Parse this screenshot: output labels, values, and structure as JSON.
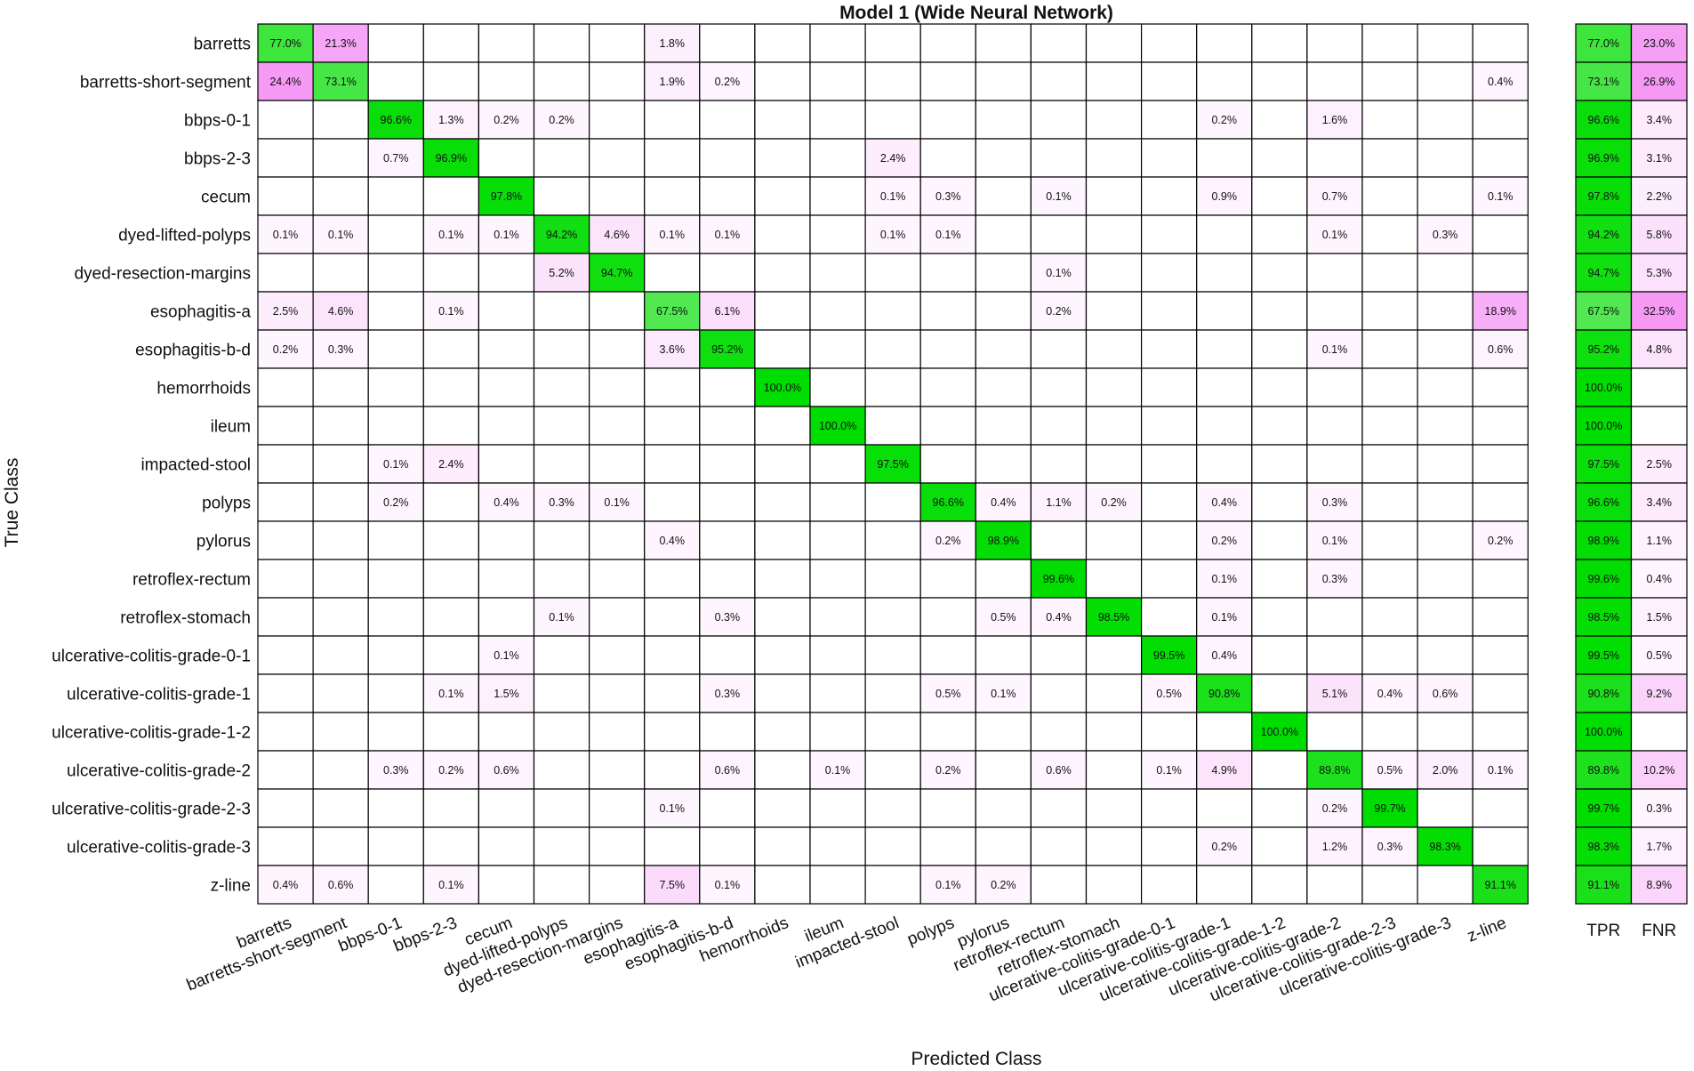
{
  "chart_data": {
    "type": "heatmap",
    "title": "Model 1 (Wide Neural Network)",
    "xlabel": "Predicted Class",
    "ylabel": "True Class",
    "classes": [
      "barretts",
      "barretts-short-segment",
      "bbps-0-1",
      "bbps-2-3",
      "cecum",
      "dyed-lifted-polyps",
      "dyed-resection-margins",
      "esophagitis-a",
      "esophagitis-b-d",
      "hemorrhoids",
      "ileum",
      "impacted-stool",
      "polyps",
      "pylorus",
      "retroflex-rectum",
      "retroflex-stomach",
      "ulcerative-colitis-grade-0-1",
      "ulcerative-colitis-grade-1",
      "ulcerative-colitis-grade-1-2",
      "ulcerative-colitis-grade-2",
      "ulcerative-colitis-grade-2-3",
      "ulcerative-colitis-grade-3",
      "z-line"
    ],
    "summary_columns": [
      "TPR",
      "FNR"
    ],
    "value_format": "percent",
    "colors": {
      "diagonal": "#00dd00",
      "off_diagonal": "#ee55ee",
      "border": "#000000"
    },
    "matrix": [
      [
        77.0,
        21.3,
        null,
        null,
        null,
        null,
        null,
        1.8,
        null,
        null,
        null,
        null,
        null,
        null,
        null,
        null,
        null,
        null,
        null,
        null,
        null,
        null,
        null
      ],
      [
        24.4,
        73.1,
        null,
        null,
        null,
        null,
        null,
        1.9,
        0.2,
        null,
        null,
        null,
        null,
        null,
        null,
        null,
        null,
        null,
        null,
        null,
        null,
        null,
        0.4
      ],
      [
        null,
        null,
        96.6,
        1.3,
        0.2,
        0.2,
        null,
        null,
        null,
        null,
        null,
        null,
        null,
        null,
        null,
        null,
        null,
        0.2,
        null,
        1.6,
        null,
        null,
        null
      ],
      [
        null,
        null,
        0.7,
        96.9,
        null,
        null,
        null,
        null,
        null,
        null,
        null,
        2.4,
        null,
        null,
        null,
        null,
        null,
        null,
        null,
        null,
        null,
        null,
        null
      ],
      [
        null,
        null,
        null,
        null,
        97.8,
        null,
        null,
        null,
        null,
        null,
        null,
        0.1,
        0.3,
        null,
        0.1,
        null,
        null,
        0.9,
        null,
        0.7,
        null,
        null,
        0.1
      ],
      [
        0.1,
        0.1,
        null,
        0.1,
        0.1,
        94.2,
        4.6,
        0.1,
        0.1,
        null,
        null,
        0.1,
        0.1,
        null,
        null,
        null,
        null,
        null,
        null,
        0.1,
        null,
        0.3,
        null
      ],
      [
        null,
        null,
        null,
        null,
        null,
        5.2,
        94.7,
        null,
        null,
        null,
        null,
        null,
        null,
        null,
        0.1,
        null,
        null,
        null,
        null,
        null,
        null,
        null,
        null
      ],
      [
        2.5,
        4.6,
        null,
        0.1,
        null,
        null,
        null,
        67.5,
        6.1,
        null,
        null,
        null,
        null,
        null,
        0.2,
        null,
        null,
        null,
        null,
        null,
        null,
        null,
        18.9
      ],
      [
        0.2,
        0.3,
        null,
        null,
        null,
        null,
        null,
        3.6,
        95.2,
        null,
        null,
        null,
        null,
        null,
        null,
        null,
        null,
        null,
        null,
        0.1,
        null,
        null,
        0.6
      ],
      [
        null,
        null,
        null,
        null,
        null,
        null,
        null,
        null,
        null,
        100.0,
        null,
        null,
        null,
        null,
        null,
        null,
        null,
        null,
        null,
        null,
        null,
        null,
        null
      ],
      [
        null,
        null,
        null,
        null,
        null,
        null,
        null,
        null,
        null,
        null,
        100.0,
        null,
        null,
        null,
        null,
        null,
        null,
        null,
        null,
        null,
        null,
        null,
        null
      ],
      [
        null,
        null,
        0.1,
        2.4,
        null,
        null,
        null,
        null,
        null,
        null,
        null,
        97.5,
        null,
        null,
        null,
        null,
        null,
        null,
        null,
        null,
        null,
        null,
        null
      ],
      [
        null,
        null,
        0.2,
        null,
        0.4,
        0.3,
        0.1,
        null,
        null,
        null,
        null,
        null,
        96.6,
        0.4,
        1.1,
        0.2,
        null,
        0.4,
        null,
        0.3,
        null,
        null,
        null
      ],
      [
        null,
        null,
        null,
        null,
        null,
        null,
        null,
        0.4,
        null,
        null,
        null,
        null,
        0.2,
        98.9,
        null,
        null,
        null,
        0.2,
        null,
        0.1,
        null,
        null,
        0.2
      ],
      [
        null,
        null,
        null,
        null,
        null,
        null,
        null,
        null,
        null,
        null,
        null,
        null,
        null,
        null,
        99.6,
        null,
        null,
        0.1,
        null,
        0.3,
        null,
        null,
        null
      ],
      [
        null,
        null,
        null,
        null,
        null,
        0.1,
        null,
        null,
        0.3,
        null,
        null,
        null,
        null,
        0.5,
        0.4,
        98.5,
        null,
        0.1,
        null,
        null,
        null,
        null,
        null
      ],
      [
        null,
        null,
        null,
        null,
        0.1,
        null,
        null,
        null,
        null,
        null,
        null,
        null,
        null,
        null,
        null,
        null,
        99.5,
        0.4,
        null,
        null,
        null,
        null,
        null
      ],
      [
        null,
        null,
        null,
        0.1,
        1.5,
        null,
        null,
        null,
        0.3,
        null,
        null,
        null,
        0.5,
        0.1,
        null,
        null,
        0.5,
        90.8,
        null,
        5.1,
        0.4,
        0.6,
        null
      ],
      [
        null,
        null,
        null,
        null,
        null,
        null,
        null,
        null,
        null,
        null,
        null,
        null,
        null,
        null,
        null,
        null,
        null,
        null,
        100.0,
        null,
        null,
        null,
        null
      ],
      [
        null,
        null,
        0.3,
        0.2,
        0.6,
        null,
        null,
        null,
        0.6,
        null,
        0.1,
        null,
        0.2,
        null,
        0.6,
        null,
        0.1,
        4.9,
        null,
        89.8,
        0.5,
        2.0,
        0.1
      ],
      [
        null,
        null,
        null,
        null,
        null,
        null,
        null,
        0.1,
        null,
        null,
        null,
        null,
        null,
        null,
        null,
        null,
        null,
        null,
        null,
        0.2,
        99.7,
        null,
        null
      ],
      [
        null,
        null,
        null,
        null,
        null,
        null,
        null,
        null,
        null,
        null,
        null,
        null,
        null,
        null,
        null,
        null,
        null,
        0.2,
        null,
        1.2,
        0.3,
        98.3,
        null
      ],
      [
        0.4,
        0.6,
        null,
        0.1,
        null,
        null,
        null,
        7.5,
        0.1,
        null,
        null,
        null,
        0.1,
        0.2,
        null,
        null,
        null,
        null,
        null,
        null,
        null,
        null,
        91.1
      ]
    ],
    "tpr": [
      77.0,
      73.1,
      96.6,
      96.9,
      97.8,
      94.2,
      94.7,
      67.5,
      95.2,
      100.0,
      100.0,
      97.5,
      96.6,
      98.9,
      99.6,
      98.5,
      99.5,
      90.8,
      100.0,
      89.8,
      99.7,
      98.3,
      91.1
    ],
    "fnr": [
      23.0,
      26.9,
      3.4,
      3.1,
      2.2,
      5.8,
      5.3,
      32.5,
      4.8,
      null,
      null,
      2.5,
      3.4,
      1.1,
      0.4,
      1.5,
      0.5,
      9.2,
      null,
      10.2,
      0.3,
      1.7,
      8.9
    ]
  }
}
